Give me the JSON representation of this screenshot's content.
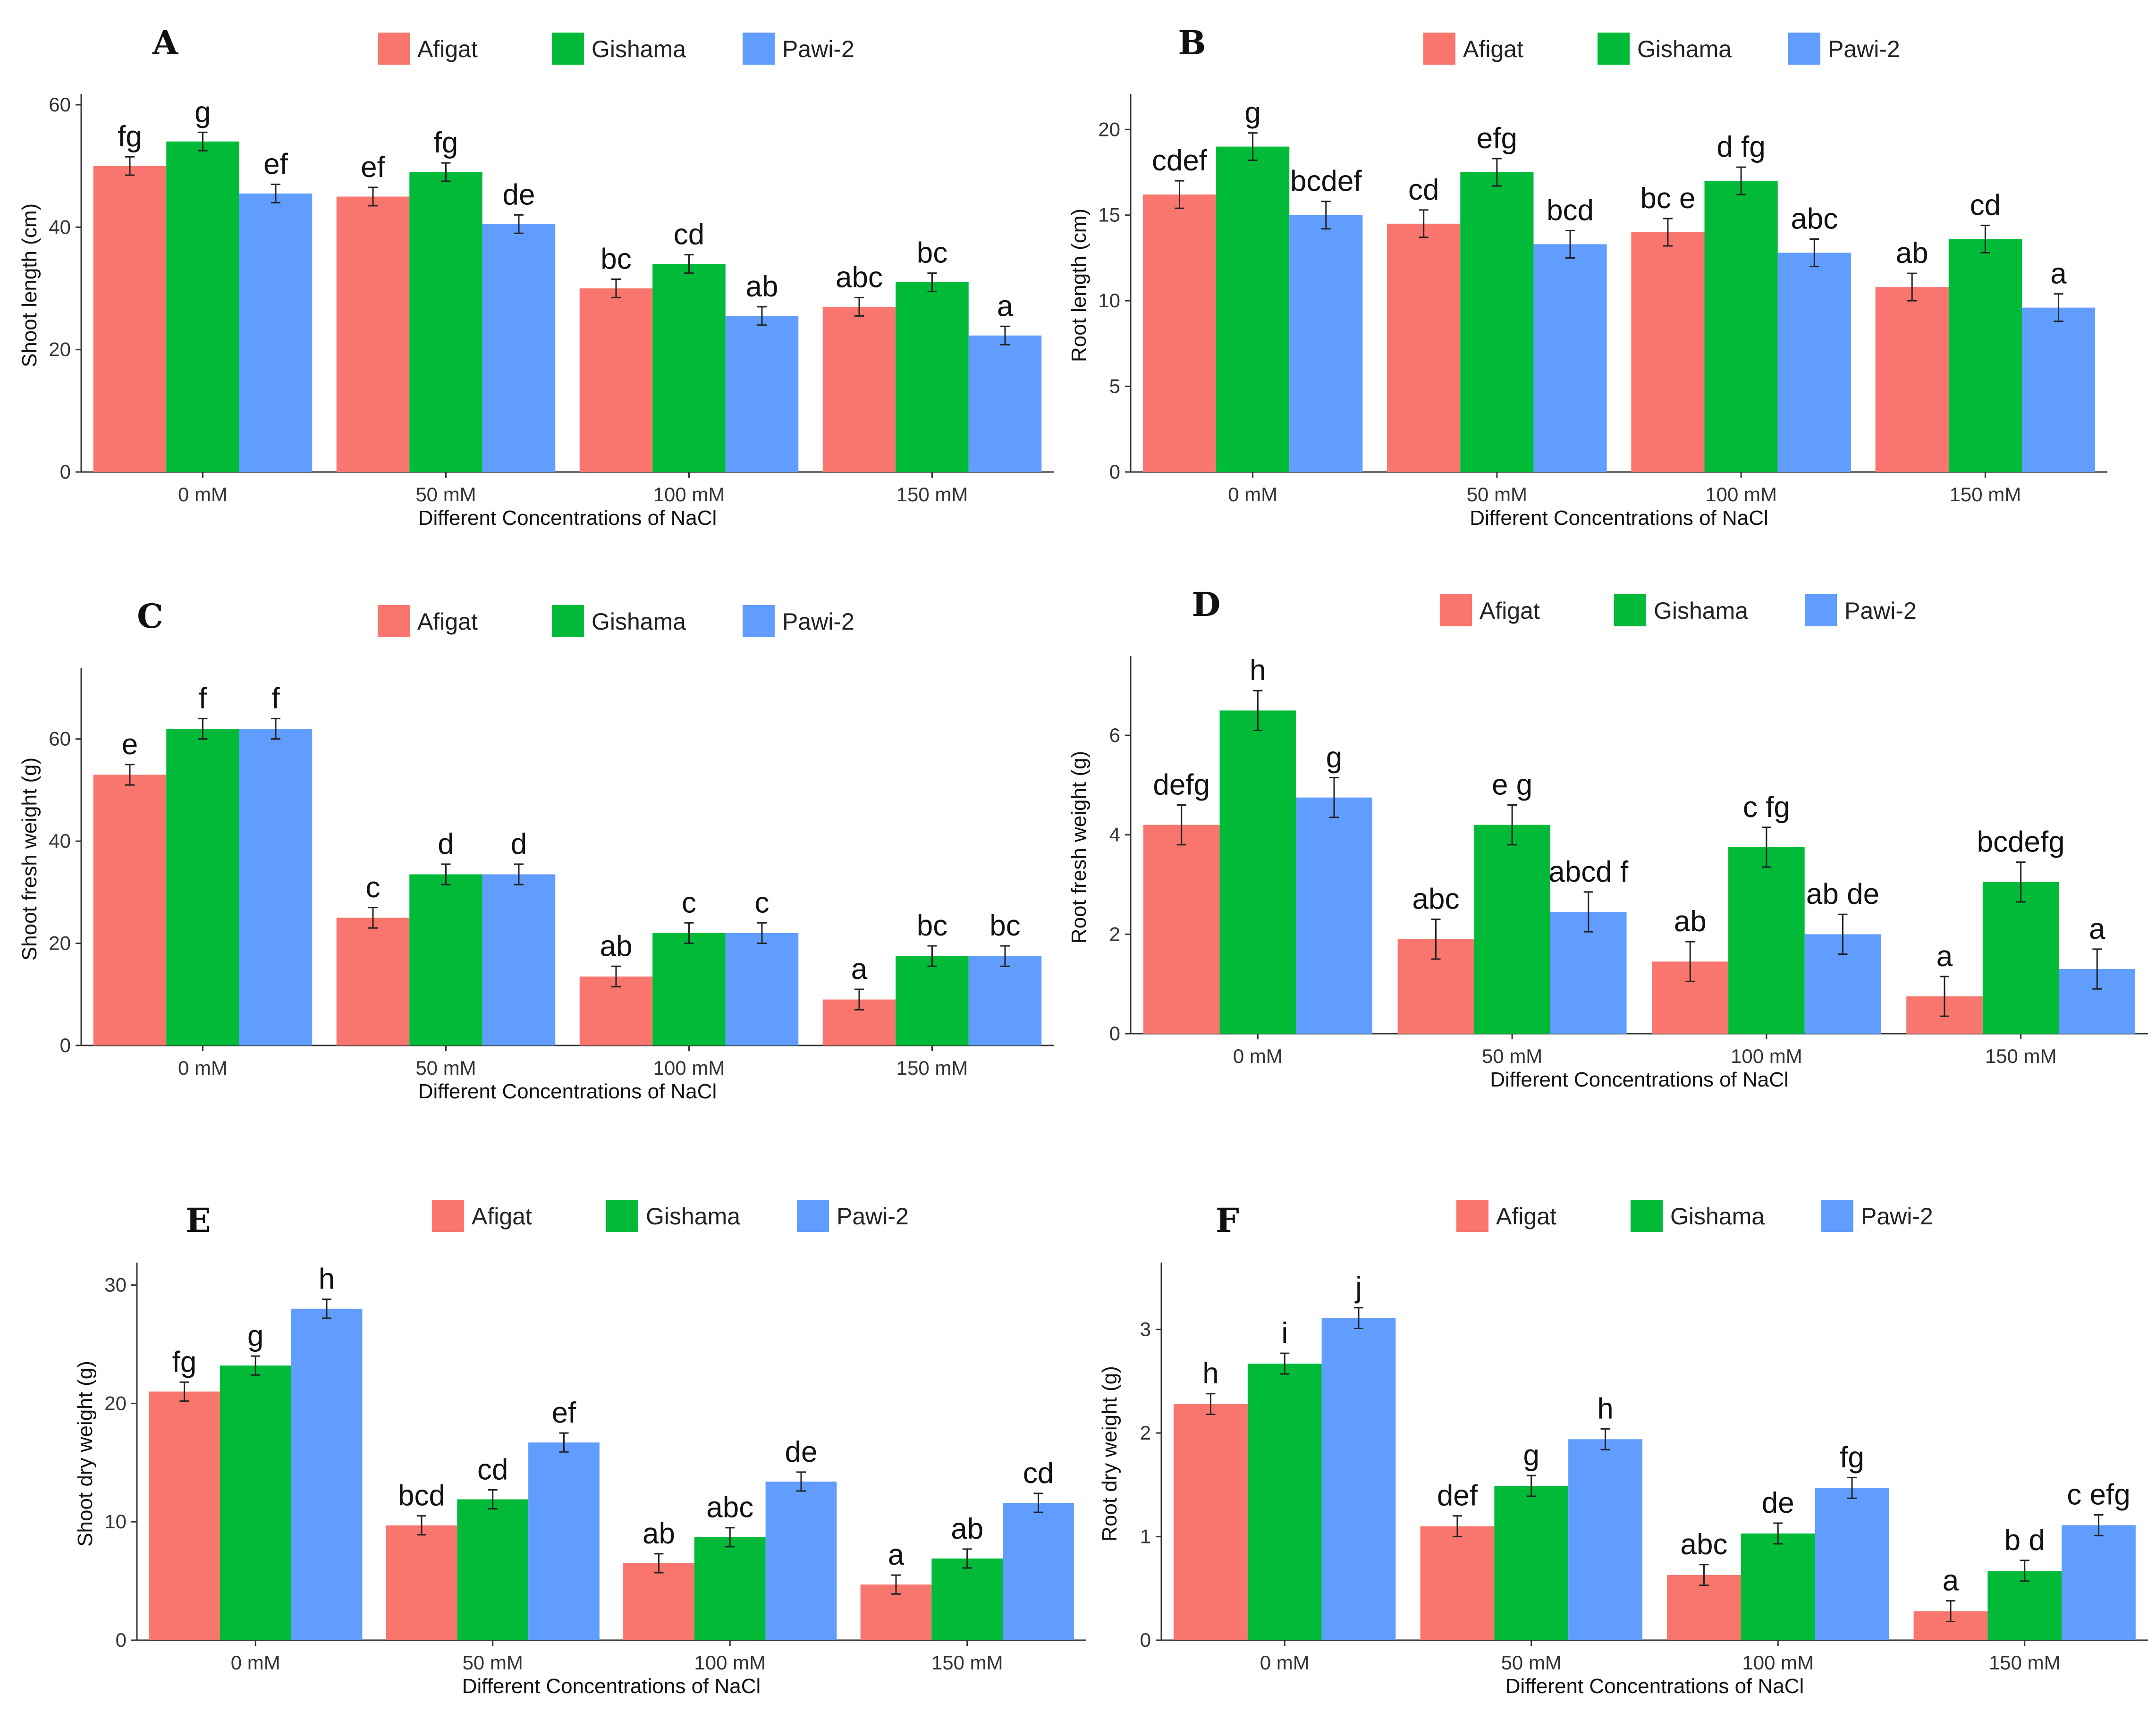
{
  "figure": {
    "colors": {
      "Afigat": "#F8766D",
      "Gishama": "#00BA38",
      "Pawi-2": "#619CFF"
    }
  },
  "chart_data": [
    {
      "panel": "A",
      "type": "bar",
      "categories": [
        "0 mM",
        "50 mM",
        "100 mM",
        "150 mM"
      ],
      "legend": [
        "Afigat",
        "Gishama",
        "Pawi-2"
      ],
      "xlabel": "Different Concentrations of NaCl",
      "ylabel": "Shoot length (cm)",
      "ylim": [
        0,
        61
      ],
      "yticks": [
        0,
        20,
        40,
        60
      ],
      "series": [
        {
          "name": "Afigat",
          "values": [
            50.0,
            45.0,
            30.0,
            27.0
          ],
          "errors": [
            1.5,
            1.5,
            1.5,
            1.5
          ],
          "labels": [
            "fg",
            "ef",
            "bc",
            "abc"
          ]
        },
        {
          "name": "Gishama",
          "values": [
            54.0,
            49.0,
            34.0,
            31.0
          ],
          "errors": [
            1.5,
            1.5,
            1.5,
            1.5
          ],
          "labels": [
            "g",
            "fg",
            "cd",
            "bc"
          ]
        },
        {
          "name": "Pawi-2",
          "values": [
            45.5,
            40.5,
            25.5,
            22.3
          ],
          "errors": [
            1.5,
            1.5,
            1.5,
            1.5
          ],
          "labels": [
            "ef",
            "de",
            "ab",
            "a"
          ]
        }
      ]
    },
    {
      "panel": "B",
      "type": "bar",
      "categories": [
        "0 mM",
        "50 mM",
        "100 mM",
        "150 mM"
      ],
      "legend": [
        "Afigat",
        "Gishama",
        "Pawi-2"
      ],
      "xlabel": "Different Concentrations of NaCl",
      "ylabel": "Root length (cm)",
      "ylim": [
        0,
        21.8
      ],
      "yticks": [
        0,
        5,
        10,
        15,
        20
      ],
      "series": [
        {
          "name": "Afigat",
          "values": [
            16.2,
            14.5,
            14.0,
            10.8
          ],
          "errors": [
            0.8,
            0.8,
            0.8,
            0.8
          ],
          "labels": [
            "cdef",
            "cd",
            "bc e",
            "ab"
          ]
        },
        {
          "name": "Gishama",
          "values": [
            19.0,
            17.5,
            17.0,
            13.6
          ],
          "errors": [
            0.8,
            0.8,
            0.8,
            0.8
          ],
          "labels": [
            "g",
            "efg",
            "d fg",
            "cd"
          ]
        },
        {
          "name": "Pawi-2",
          "values": [
            15.0,
            13.3,
            12.8,
            9.6
          ],
          "errors": [
            0.8,
            0.8,
            0.8,
            0.8
          ],
          "labels": [
            "bcdef",
            "bcd",
            "abc",
            "a"
          ]
        }
      ]
    },
    {
      "panel": "C",
      "type": "bar",
      "categories": [
        "0 mM",
        "50 mM",
        "100 mM",
        "150 mM"
      ],
      "legend": [
        "Afigat",
        "Gishama",
        "Pawi-2"
      ],
      "xlabel": "Different Concentrations of NaCl",
      "ylabel": "Shoot fresh weight (g)",
      "ylim": [
        0,
        73
      ],
      "yticks": [
        0,
        20,
        40,
        60
      ],
      "series": [
        {
          "name": "Afigat",
          "values": [
            53.0,
            25.0,
            13.5,
            9.0
          ],
          "errors": [
            2.0,
            2.0,
            2.0,
            2.0
          ],
          "labels": [
            "e",
            "c",
            "ab",
            "a"
          ]
        },
        {
          "name": "Gishama",
          "values": [
            62.0,
            33.5,
            22.0,
            17.5
          ],
          "errors": [
            2.0,
            2.0,
            2.0,
            2.0
          ],
          "labels": [
            "f",
            "d",
            "c",
            "bc"
          ]
        },
        {
          "name": "Pawi-2",
          "values": [
            62.0,
            33.5,
            22.0,
            17.5
          ],
          "errors": [
            2.0,
            2.0,
            2.0,
            2.0
          ],
          "labels": [
            "f",
            "d",
            "c",
            "bc"
          ]
        }
      ]
    },
    {
      "panel": "D",
      "type": "bar",
      "categories": [
        "0 mM",
        "50 mM",
        "100 mM",
        "150 mM"
      ],
      "legend": [
        "Afigat",
        "Gishama",
        "Pawi-2"
      ],
      "xlabel": "Different Concentrations of NaCl",
      "ylabel": "Root fresh weight (g)",
      "ylim": [
        0,
        7.5
      ],
      "yticks": [
        0,
        2,
        4,
        6
      ],
      "series": [
        {
          "name": "Afigat",
          "values": [
            4.2,
            1.9,
            1.45,
            0.75
          ],
          "errors": [
            0.4,
            0.4,
            0.4,
            0.4
          ],
          "labels": [
            "defg",
            "abc",
            "ab",
            "a"
          ]
        },
        {
          "name": "Gishama",
          "values": [
            6.5,
            4.2,
            3.75,
            3.05
          ],
          "errors": [
            0.4,
            0.4,
            0.4,
            0.4
          ],
          "labels": [
            "h",
            "e g",
            "c  fg",
            "bcdefg"
          ]
        },
        {
          "name": "Pawi-2",
          "values": [
            4.75,
            2.45,
            2.0,
            1.3
          ],
          "errors": [
            0.4,
            0.4,
            0.4,
            0.4
          ],
          "labels": [
            "g",
            "abcd f",
            "ab de",
            "a"
          ]
        }
      ]
    },
    {
      "panel": "E",
      "type": "bar",
      "categories": [
        "0 mM",
        "50 mM",
        "100 mM",
        "150 mM"
      ],
      "legend": [
        "Afigat",
        "Gishama",
        "Pawi-2"
      ],
      "xlabel": "Different Concentrations of NaCl",
      "ylabel": "Shoot dry weight (g)",
      "ylim": [
        0,
        31.5
      ],
      "yticks": [
        0,
        10,
        20,
        30
      ],
      "series": [
        {
          "name": "Afigat",
          "values": [
            21.0,
            9.7,
            6.5,
            4.7
          ],
          "errors": [
            0.8,
            0.8,
            0.8,
            0.8
          ],
          "labels": [
            "fg",
            "bcd",
            "ab",
            "a"
          ]
        },
        {
          "name": "Gishama",
          "values": [
            23.2,
            11.9,
            8.7,
            6.9
          ],
          "errors": [
            0.8,
            0.8,
            0.8,
            0.8
          ],
          "labels": [
            "g",
            "cd",
            "abc",
            "ab"
          ]
        },
        {
          "name": "Pawi-2",
          "values": [
            28.0,
            16.7,
            13.4,
            11.6
          ],
          "errors": [
            0.8,
            0.8,
            0.8,
            0.8
          ],
          "labels": [
            "h",
            "ef",
            "de",
            "cd"
          ]
        }
      ]
    },
    {
      "panel": "F",
      "type": "bar",
      "categories": [
        "0 mM",
        "50 mM",
        "100 mM",
        "150 mM"
      ],
      "legend": [
        "Afigat",
        "Gishama",
        "Pawi-2"
      ],
      "xlabel": "Different Concentrations of NaCl",
      "ylabel": "Root dry weight (g)",
      "ylim": [
        0,
        3.6
      ],
      "yticks": [
        0,
        1,
        2,
        3
      ],
      "series": [
        {
          "name": "Afigat",
          "values": [
            2.28,
            1.1,
            0.63,
            0.28
          ],
          "errors": [
            0.1,
            0.1,
            0.1,
            0.1
          ],
          "labels": [
            "h",
            "def",
            "abc",
            "a"
          ]
        },
        {
          "name": "Gishama",
          "values": [
            2.67,
            1.49,
            1.03,
            0.67
          ],
          "errors": [
            0.1,
            0.1,
            0.1,
            0.1
          ],
          "labels": [
            "i",
            "g",
            "de",
            "b d"
          ]
        },
        {
          "name": "Pawi-2",
          "values": [
            3.11,
            1.94,
            1.47,
            1.11
          ],
          "errors": [
            0.1,
            0.1,
            0.1,
            0.1
          ],
          "labels": [
            "j",
            "h",
            "fg",
            "c efg"
          ]
        }
      ]
    }
  ]
}
